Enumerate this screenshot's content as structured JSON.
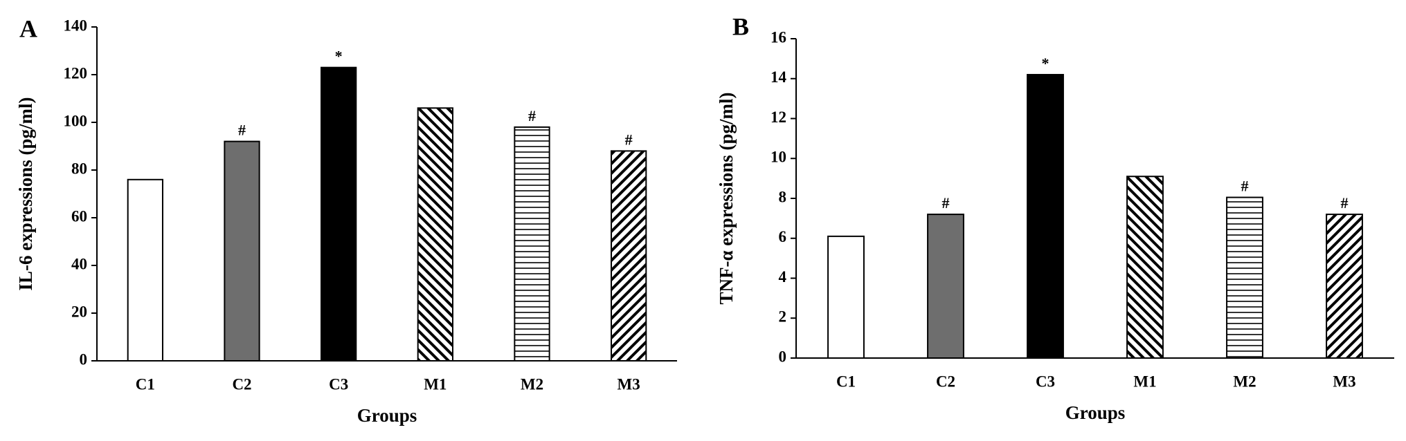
{
  "chart_data": [
    {
      "type": "bar",
      "panel_label": "A",
      "ylabel": "IL-6 expressions (pg/ml)",
      "xlabel": "Groups",
      "categories": [
        "C1",
        "C2",
        "C3",
        "M1",
        "M2",
        "M3"
      ],
      "values": [
        76,
        92,
        123,
        106,
        98,
        88
      ],
      "annotations": [
        null,
        "#",
        "*",
        null,
        "#",
        "#"
      ],
      "colors": [
        "#ffffff",
        "#6e6e6e",
        "#000000",
        "#ffffff",
        "#ffffff",
        "#ffffff"
      ],
      "hatches": [
        null,
        null,
        null,
        "diagonal-down",
        "horizontal",
        "diagonal-up"
      ],
      "ylim": [
        0,
        140
      ],
      "yticks": [
        0,
        20,
        40,
        60,
        80,
        100,
        120,
        140
      ]
    },
    {
      "type": "bar",
      "panel_label": "B",
      "ylabel": "TNF-α expressions (pg/ml)",
      "xlabel": "Groups",
      "categories": [
        "C1",
        "C2",
        "C3",
        "M1",
        "M2",
        "M3"
      ],
      "values": [
        6.1,
        7.2,
        14.2,
        9.1,
        8.05,
        7.2
      ],
      "annotations": [
        null,
        "#",
        "*",
        null,
        "#",
        "#"
      ],
      "colors": [
        "#ffffff",
        "#6e6e6e",
        "#000000",
        "#ffffff",
        "#ffffff",
        "#ffffff"
      ],
      "hatches": [
        null,
        null,
        null,
        "diagonal-down",
        "horizontal",
        "diagonal-up"
      ],
      "ylim": [
        0,
        16
      ],
      "yticks": [
        0,
        2,
        4,
        6,
        8,
        10,
        12,
        14,
        16
      ]
    }
  ]
}
